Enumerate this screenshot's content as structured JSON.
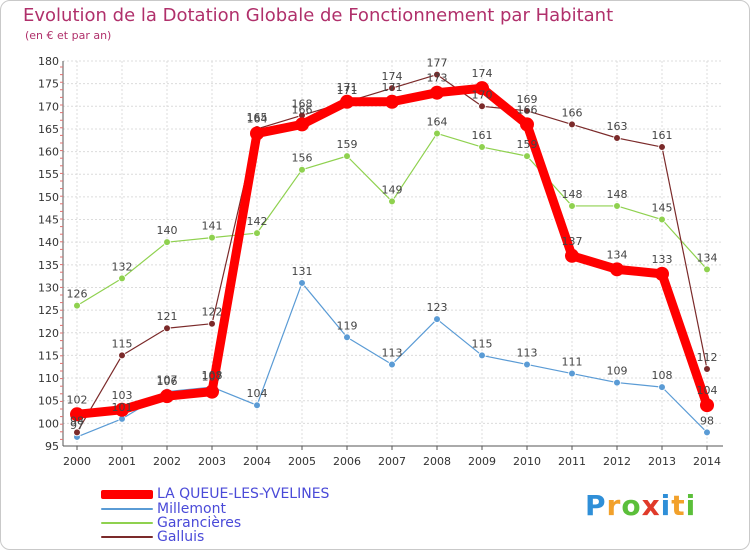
{
  "title": "Evolution de la Dotation Globale de Fonctionnement par Habitant",
  "subtitle": "(en € et par an)",
  "logo": {
    "text": "Proxiti",
    "colors": [
      "#2f8fd8",
      "#f2a12b",
      "#5bbf3a",
      "#e03a2a",
      "#2f8fd8",
      "#f2a12b",
      "#5bbf3a"
    ]
  },
  "chart_data": {
    "type": "line",
    "title": "Evolution de la Dotation Globale de Fonctionnement par Habitant",
    "subtitle": "(en € et par an)",
    "x": [
      "2000",
      "2001",
      "2002",
      "2003",
      "2004",
      "2005",
      "2006",
      "2007",
      "2008",
      "2009",
      "2010",
      "2011",
      "2012",
      "2013",
      "2014"
    ],
    "ylim": [
      95,
      180
    ],
    "yticks": [
      95,
      100,
      105,
      110,
      115,
      120,
      125,
      130,
      135,
      140,
      145,
      150,
      155,
      160,
      165,
      170,
      175,
      180
    ],
    "grid": true,
    "legend_position": "bottom-left",
    "series": [
      {
        "name": "LA QUEUE-LES-YVELINES",
        "color": "#ff0000",
        "values": [
          102,
          103,
          106,
          107,
          164,
          166,
          171,
          171,
          173,
          174,
          166,
          137,
          134,
          133,
          104
        ],
        "labels": [
          "102",
          "103",
          "106",
          "107",
          "164",
          "166",
          "171",
          "171",
          "173",
          "174",
          "166",
          "137",
          "134",
          "133",
          "104"
        ]
      },
      {
        "name": "Millemont",
        "color": "#5a9bd5",
        "values": [
          97,
          101,
          107,
          108,
          104,
          131,
          119,
          113,
          123,
          115,
          113,
          111,
          109,
          108,
          98
        ],
        "labels": [
          "97",
          "101",
          "107",
          "108",
          "104",
          "131",
          "119",
          "113",
          "123",
          "115",
          "113",
          "111",
          "109",
          "108",
          "98"
        ]
      },
      {
        "name": "Garancières",
        "color": "#8fd14f",
        "values": [
          126,
          132,
          140,
          141,
          142,
          156,
          159,
          149,
          164,
          161,
          159,
          148,
          148,
          145,
          134
        ],
        "labels": [
          "126",
          "132",
          "140",
          "141",
          "142",
          "156",
          "159",
          "149",
          "164",
          "161",
          "159",
          "148",
          "148",
          "145",
          "134"
        ]
      },
      {
        "name": "Galluis",
        "color": "#7b2a2a",
        "values": [
          98,
          115,
          121,
          122,
          165,
          168,
          171,
          174,
          177,
          170,
          169,
          166,
          163,
          161,
          112
        ],
        "labels": [
          "98",
          "115",
          "121",
          "122",
          "165",
          "168",
          "171",
          "174",
          "177",
          "170",
          "169",
          "166",
          "163",
          "161",
          "112"
        ]
      }
    ]
  }
}
